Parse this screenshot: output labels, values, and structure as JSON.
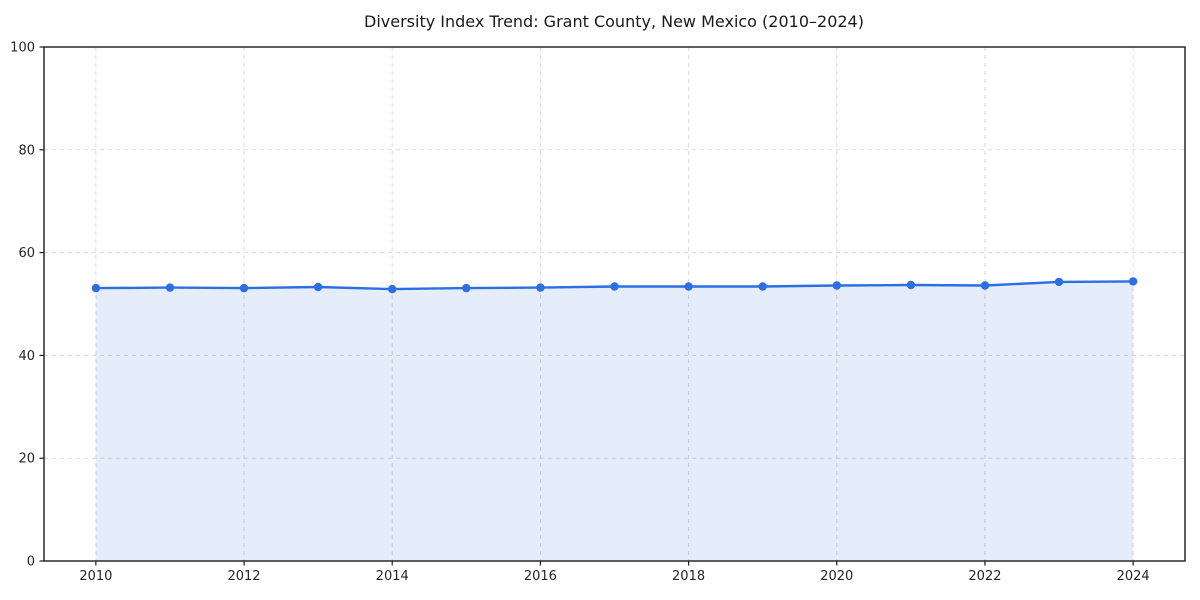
{
  "chart_data": {
    "type": "line",
    "title": "Diversity Index Trend: Grant County, New Mexico (2010–2024)",
    "x": [
      2010,
      2011,
      2012,
      2013,
      2014,
      2015,
      2016,
      2017,
      2018,
      2019,
      2020,
      2021,
      2022,
      2023,
      2024
    ],
    "series": [
      {
        "name": "Diversity Index",
        "values": [
          53.1,
          53.2,
          53.1,
          53.3,
          52.9,
          53.1,
          53.2,
          53.4,
          53.4,
          53.4,
          53.6,
          53.7,
          53.6,
          54.3,
          54.4
        ]
      }
    ],
    "xlabel": "",
    "ylabel": "",
    "xlim": [
      2009.3,
      2024.7
    ],
    "ylim": [
      0,
      100
    ],
    "xticks": [
      2010,
      2012,
      2014,
      2016,
      2018,
      2020,
      2022,
      2024
    ],
    "yticks": [
      0,
      20,
      40,
      60,
      80,
      100
    ],
    "grid": true,
    "grid_style": "dashed",
    "legend_position": "none",
    "area_fill": true,
    "marker": "circle",
    "colors": {
      "line": "#2b6fe2",
      "marker": "#2b6fe2",
      "area": "rgba(43, 111, 226, 0.12)",
      "grid": "#d9d9d9",
      "spine": "#1a1a1a",
      "tick_text": "#262626",
      "title_text": "#1a1a1a",
      "background": "#ffffff"
    }
  }
}
